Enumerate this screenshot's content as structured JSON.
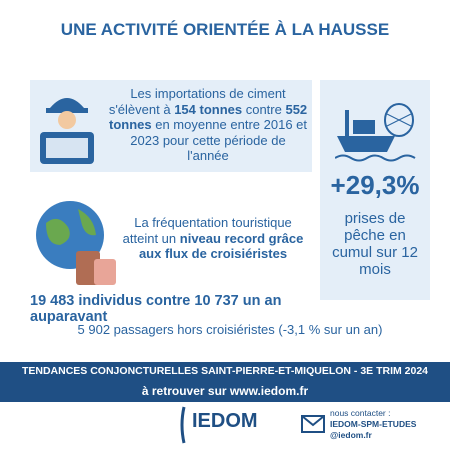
{
  "header": {
    "title": "UNE ACTIVITÉ ORIENTÉE À LA HAUSSE"
  },
  "cement": {
    "segments": [
      {
        "text": "Les importations de ciment s'élèvent à ",
        "bold": false
      },
      {
        "text": "154 tonnes",
        "bold": true
      },
      {
        "text": " contre ",
        "bold": false
      },
      {
        "text": "552 tonnes",
        "bold": true
      },
      {
        "text": " en moyenne entre 2016 et 2023 pour cette période de l'année",
        "bold": false
      }
    ]
  },
  "tourism": {
    "segments": [
      {
        "text": "La fréquentation touristique atteint un ",
        "bold": false
      },
      {
        "text": "niveau record grâce aux flux de croisiéristes",
        "bold": true
      }
    ],
    "cruise": "19 483 individus contre 10 737 un an auparavant",
    "passengers": "5 902 passagers hors croisiéristes (-3,1 % sur un an)"
  },
  "fishing": {
    "figure": "+29,3%",
    "caption": "prises de pêche en cumul sur 12 mois"
  },
  "footer": {
    "band": "TENDANCES CONJONCTURELLES SAINT-PIERRE-ET-MIQUELON - 3E TRIM 2024",
    "link": "à retrouver sur www.iedom.fr",
    "logo": "IEDOM",
    "contact_label": "nous contacter :",
    "contact_email": "IEDOM-SPM-ETUDES@iedom.fr"
  }
}
